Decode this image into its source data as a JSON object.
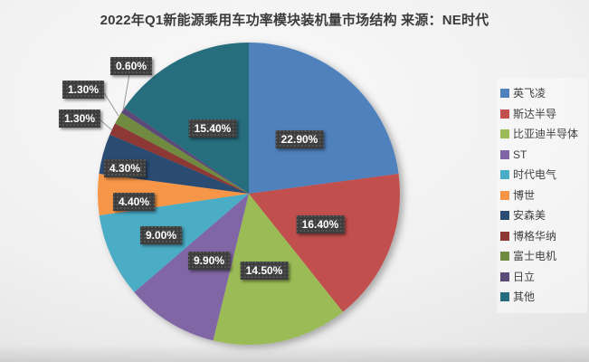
{
  "title": "2022年Q1新能源乘用车功率模块装机量市场结构 来源：NE时代",
  "chart_data": {
    "type": "pie",
    "title": "2022年Q1新能源乘用车功率模块装机量市场结构 来源：NE时代",
    "labels": [
      "英飞凌",
      "斯达半导",
      "比亚迪半导体",
      "ST",
      "时代电气",
      "博世",
      "安森美",
      "博格华纳",
      "富士电机",
      "日立",
      "其他"
    ],
    "values": [
      22.9,
      16.4,
      14.5,
      9.9,
      9.0,
      4.4,
      4.3,
      1.3,
      1.3,
      0.6,
      15.4
    ],
    "value_labels": [
      "22.90%",
      "16.40%",
      "14.50%",
      "9.90%",
      "9.00%",
      "4.40%",
      "4.30%",
      "1.30%",
      "1.30%",
      "0.60%",
      "15.40%"
    ],
    "colors": [
      "#4F81BD",
      "#C1504E",
      "#9ABB57",
      "#8066A4",
      "#4BACC6",
      "#F79646",
      "#2A4B72",
      "#8D3834",
      "#6F8B3F",
      "#5C4A77",
      "#266E7E"
    ],
    "start_angle_deg": 0,
    "direction": "clockwise",
    "legend_position": "right",
    "label_box_color": "#3D3D3D",
    "label_text_color": "#FFFFFF",
    "leader_line_color": "#9B9B9B"
  }
}
